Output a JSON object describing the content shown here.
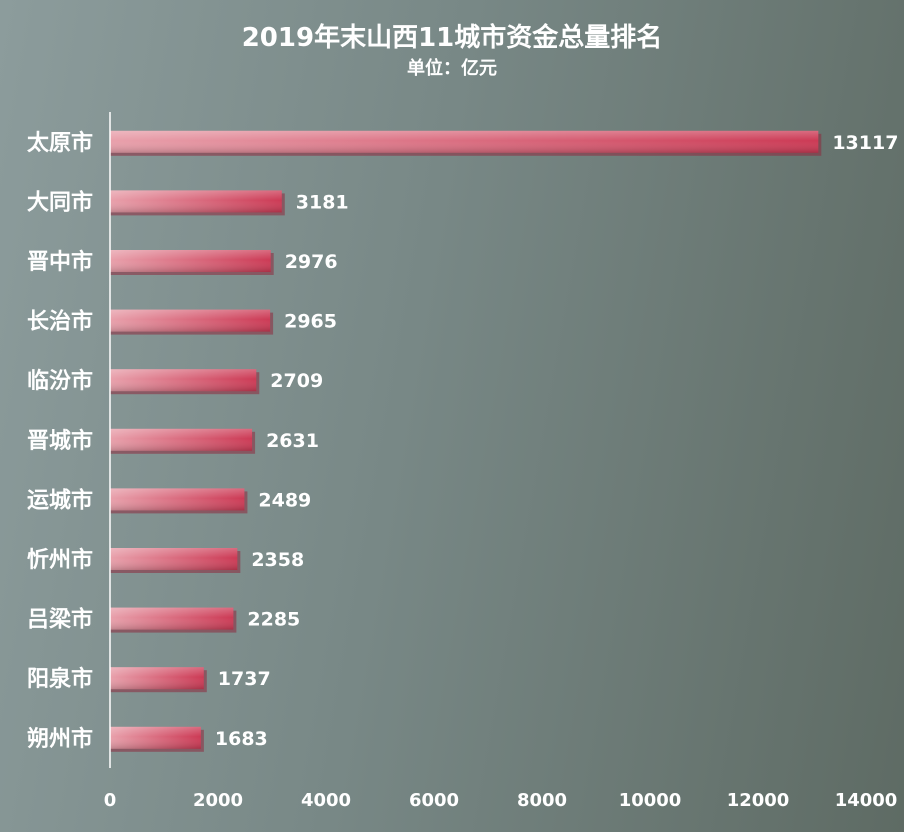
{
  "chart_data": {
    "type": "bar",
    "orientation": "horizontal",
    "title": "2019年末山西11城市资金总量排名",
    "subtitle": "单位：亿元",
    "categories": [
      "太原市",
      "大同市",
      "晋中市",
      "长治市",
      "临汾市",
      "晋城市",
      "运城市",
      "忻州市",
      "吕梁市",
      "阳泉市",
      "朔州市"
    ],
    "values": [
      13117,
      3181,
      2976,
      2965,
      2709,
      2631,
      2489,
      2358,
      2285,
      1737,
      1683
    ],
    "xlim": [
      0,
      14000
    ],
    "xticks": [
      "0",
      "2000",
      "4000",
      "6000",
      "8000",
      "10000",
      "12000",
      "14000"
    ],
    "grid": false,
    "legend": "none",
    "colors": {
      "bar_start": "#e8a0ab",
      "bar_end": "#cc3a55",
      "bar_shadow": "#8e2a3e",
      "axis": "#ffffff",
      "text": "#ffffff"
    }
  }
}
